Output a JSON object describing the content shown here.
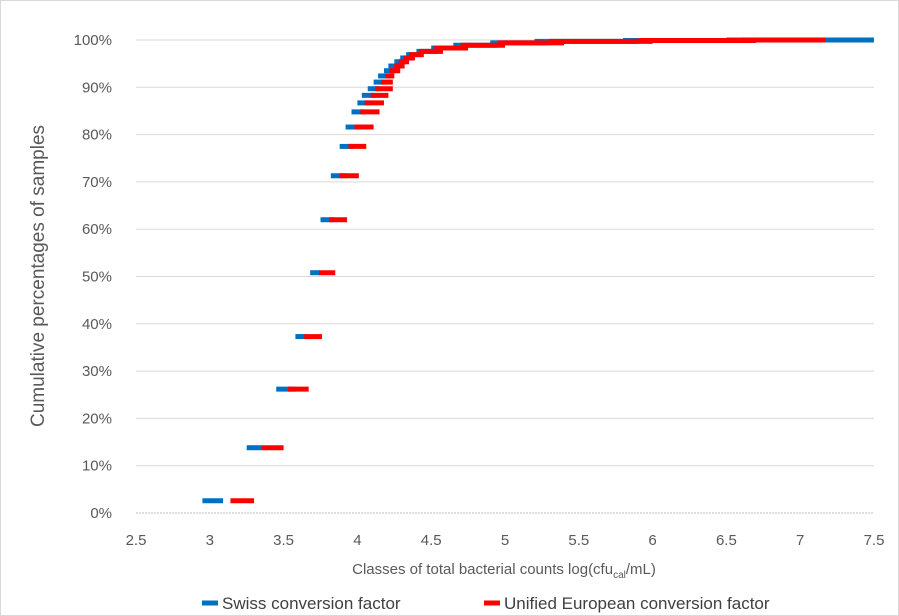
{
  "chart_data": {
    "type": "scatter",
    "xlabel": "Classes of total bacterial counts log(cfu",
    "xlabel_sub": "cal",
    "xlabel_tail": "/mL)",
    "ylabel": "Cumulative percentages of samples",
    "xlim": [
      2.5,
      7.5
    ],
    "ylim": [
      0,
      100
    ],
    "x_ticks": [
      "2.5",
      "3",
      "3.5",
      "4",
      "4.5",
      "5",
      "5.5",
      "6",
      "6.5",
      "7",
      "7.5"
    ],
    "y_ticks": [
      "0%",
      "10%",
      "20%",
      "30%",
      "40%",
      "50%",
      "60%",
      "70%",
      "80%",
      "90%",
      "100%"
    ],
    "grid": "horizontal",
    "legend_position": "bottom",
    "series": [
      {
        "name": "Swiss conversion factor",
        "color": "#0070c0",
        "segments": [
          [
            2.95,
            3.09,
            2.6
          ],
          [
            3.25,
            3.35,
            13.8
          ],
          [
            3.45,
            3.58,
            26.2
          ],
          [
            3.58,
            3.66,
            37.3
          ],
          [
            3.68,
            3.75,
            50.8
          ],
          [
            3.75,
            3.84,
            62.0
          ],
          [
            3.82,
            3.92,
            71.3
          ],
          [
            3.88,
            3.97,
            77.5
          ],
          [
            3.92,
            4.01,
            81.6
          ],
          [
            3.96,
            4.05,
            84.8
          ],
          [
            4.0,
            4.08,
            86.7
          ],
          [
            4.03,
            4.12,
            88.3
          ],
          [
            4.07,
            4.15,
            89.7
          ],
          [
            4.11,
            4.18,
            91.1
          ],
          [
            4.14,
            4.22,
            92.4
          ],
          [
            4.18,
            4.26,
            93.5
          ],
          [
            4.21,
            4.29,
            94.5
          ],
          [
            4.25,
            4.33,
            95.4
          ],
          [
            4.29,
            4.38,
            96.2
          ],
          [
            4.33,
            4.43,
            96.9
          ],
          [
            4.4,
            4.55,
            97.6
          ],
          [
            4.5,
            4.7,
            98.3
          ],
          [
            4.65,
            4.95,
            98.9
          ],
          [
            4.9,
            5.3,
            99.4
          ],
          [
            5.2,
            5.9,
            99.7
          ],
          [
            5.8,
            6.6,
            99.9
          ],
          [
            6.5,
            7.5,
            100
          ]
        ]
      },
      {
        "name": "Unified European conversion factor",
        "color": "#ff0000",
        "segments": [
          [
            3.14,
            3.3,
            2.6
          ],
          [
            3.35,
            3.5,
            13.8
          ],
          [
            3.53,
            3.67,
            26.2
          ],
          [
            3.64,
            3.76,
            37.3
          ],
          [
            3.74,
            3.85,
            50.8
          ],
          [
            3.81,
            3.93,
            62.0
          ],
          [
            3.88,
            4.01,
            71.3
          ],
          [
            3.94,
            4.06,
            77.5
          ],
          [
            3.98,
            4.11,
            81.6
          ],
          [
            4.02,
            4.15,
            84.8
          ],
          [
            4.05,
            4.18,
            86.7
          ],
          [
            4.09,
            4.21,
            88.3
          ],
          [
            4.12,
            4.24,
            89.7
          ],
          [
            4.16,
            4.24,
            91.1
          ],
          [
            4.19,
            4.25,
            92.4
          ],
          [
            4.22,
            4.29,
            93.5
          ],
          [
            4.25,
            4.32,
            94.5
          ],
          [
            4.28,
            4.35,
            95.4
          ],
          [
            4.31,
            4.39,
            96.2
          ],
          [
            4.35,
            4.45,
            96.9
          ],
          [
            4.42,
            4.58,
            97.6
          ],
          [
            4.52,
            4.75,
            98.3
          ],
          [
            4.7,
            5.0,
            98.9
          ],
          [
            4.95,
            5.4,
            99.4
          ],
          [
            5.3,
            6.0,
            99.7
          ],
          [
            5.9,
            6.7,
            99.9
          ],
          [
            6.6,
            7.17,
            100
          ]
        ]
      }
    ]
  }
}
